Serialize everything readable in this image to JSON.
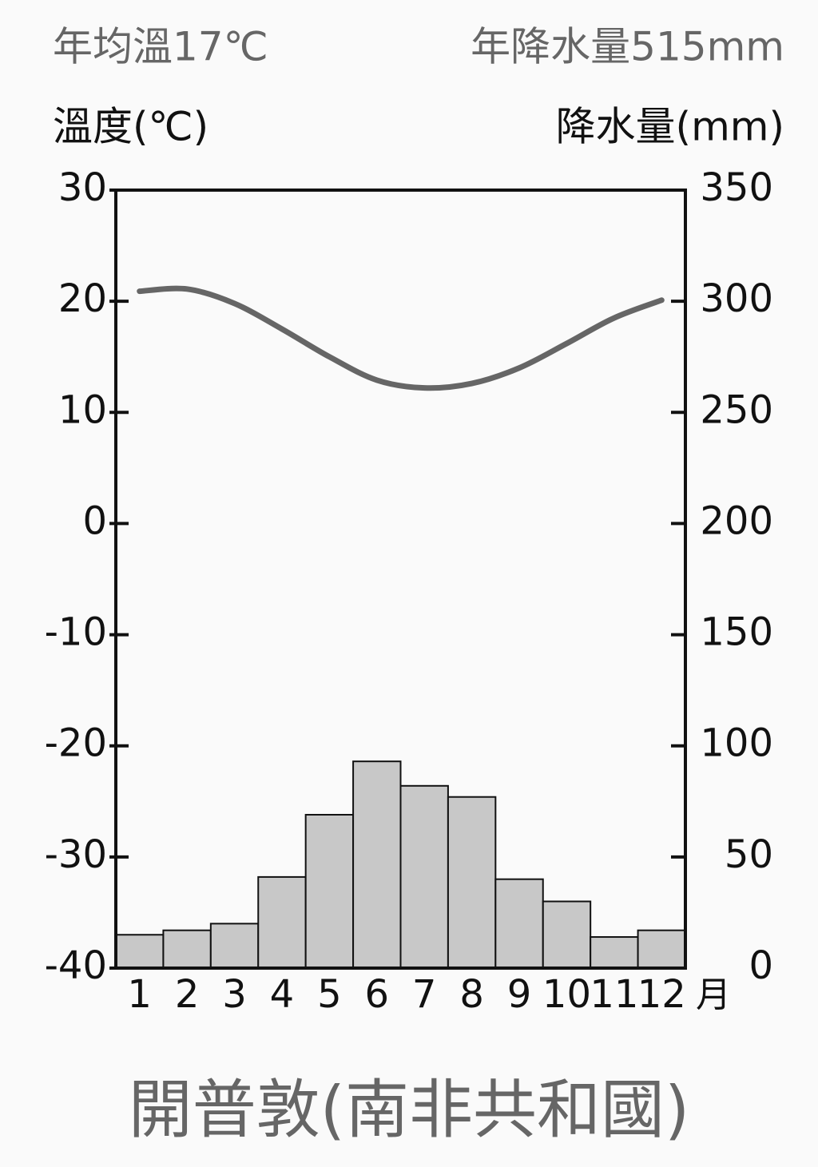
{
  "chart_data": {
    "type": "combo",
    "title": "開普敦(南非共和國)",
    "annotations": [
      "年均溫17℃",
      "年降水量515mm"
    ],
    "y_label": "溫度(℃)",
    "y2_label": "降水量(mm)",
    "x_label": "月",
    "categories": [
      "1",
      "2",
      "3",
      "4",
      "5",
      "6",
      "7",
      "8",
      "9",
      "10",
      "11",
      "12"
    ],
    "series": [
      {
        "name": "降水量",
        "type": "bar",
        "axis": "y2",
        "color": "#c8c8c8",
        "values": [
          15,
          17,
          20,
          41,
          69,
          93,
          82,
          77,
          40,
          30,
          14,
          17
        ]
      },
      {
        "name": "溫度",
        "type": "line",
        "axis": "y",
        "color": "#666666",
        "values": [
          20.9,
          21.1,
          19.8,
          17.5,
          15.0,
          12.9,
          12.2,
          12.6,
          14.0,
          16.2,
          18.5,
          20.1
        ]
      }
    ],
    "ylim": [
      -40,
      30
    ],
    "yticks": [
      -40,
      -30,
      -20,
      -10,
      0,
      10,
      20,
      30
    ],
    "y2lim": [
      0,
      350
    ],
    "y2ticks": [
      0,
      50,
      100,
      150,
      200,
      250,
      300,
      350
    ]
  }
}
